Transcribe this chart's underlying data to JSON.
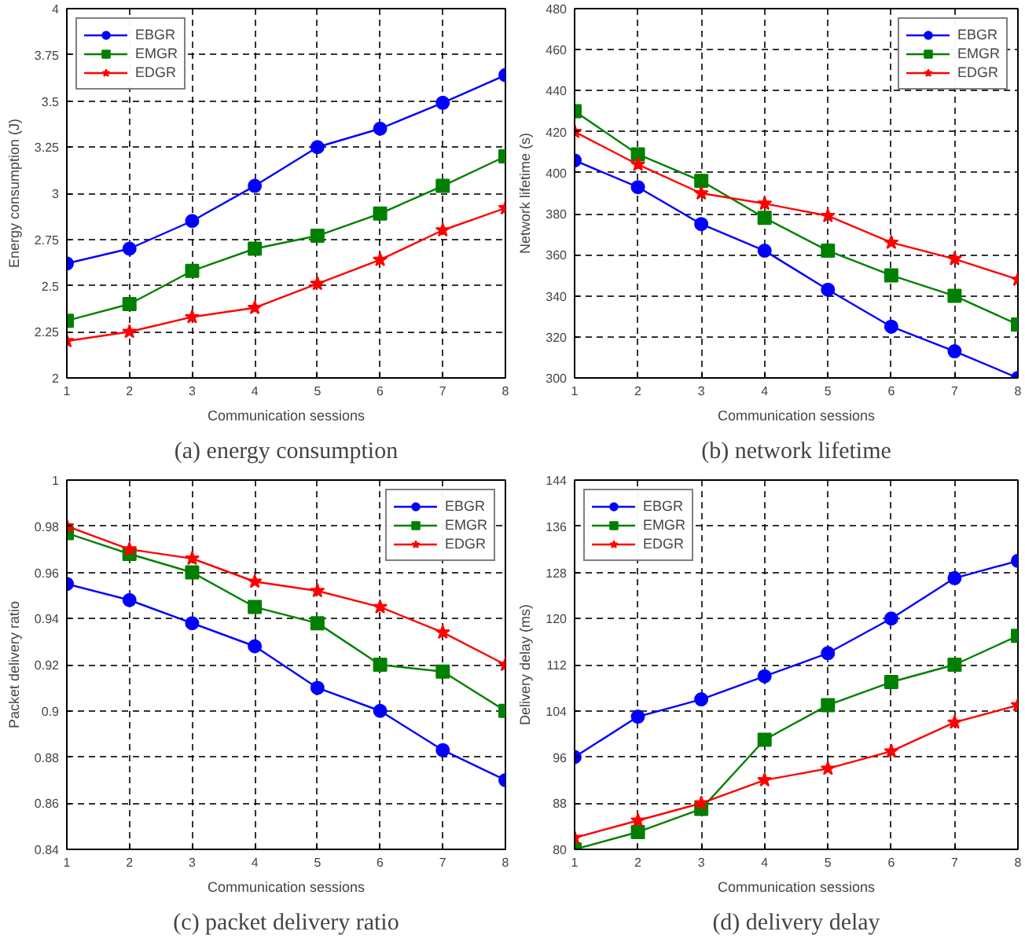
{
  "chart_data": [
    {
      "type": "line",
      "title": "(a) energy consumption",
      "xlabel": "Communication sessions",
      "ylabel": "Energy consumption (J)",
      "x": [
        1,
        2,
        3,
        4,
        5,
        6,
        7,
        8
      ],
      "xlim": [
        1,
        8
      ],
      "xticks": [
        1,
        2,
        3,
        4,
        5,
        6,
        7,
        8
      ],
      "ylim": [
        2,
        4
      ],
      "yticks": [
        2,
        2.25,
        2.5,
        2.75,
        3,
        3.25,
        3.5,
        3.75,
        4
      ],
      "grid": true,
      "legend": "top left",
      "series": [
        {
          "name": "EBGR",
          "color": "#0000ff",
          "marker": "circle",
          "values": [
            2.62,
            2.7,
            2.85,
            3.04,
            3.25,
            3.35,
            3.49,
            3.64
          ]
        },
        {
          "name": "EMGR",
          "color": "#008000",
          "marker": "square",
          "values": [
            2.31,
            2.4,
            2.58,
            2.7,
            2.77,
            2.89,
            3.04,
            3.2
          ]
        },
        {
          "name": "EDGR",
          "color": "#ff0000",
          "marker": "star",
          "values": [
            2.2,
            2.25,
            2.33,
            2.38,
            2.51,
            2.64,
            2.8,
            2.92
          ]
        }
      ]
    },
    {
      "type": "line",
      "title": "(b) network lifetime",
      "xlabel": "Communication sessions",
      "ylabel": "Network lifetime (s)",
      "x": [
        1,
        2,
        3,
        4,
        5,
        6,
        7,
        8
      ],
      "xlim": [
        1,
        8
      ],
      "xticks": [
        1,
        2,
        3,
        4,
        5,
        6,
        7,
        8
      ],
      "ylim": [
        300,
        480
      ],
      "yticks": [
        300,
        320,
        340,
        360,
        380,
        400,
        420,
        440,
        460,
        480
      ],
      "grid": true,
      "legend": "top right",
      "series": [
        {
          "name": "EBGR",
          "color": "#0000ff",
          "marker": "circle",
          "values": [
            406,
            393,
            375,
            362,
            343,
            325,
            313,
            300
          ]
        },
        {
          "name": "EMGR",
          "color": "#008000",
          "marker": "square",
          "values": [
            430,
            409,
            396,
            378,
            362,
            350,
            340,
            326
          ]
        },
        {
          "name": "EDGR",
          "color": "#ff0000",
          "marker": "star",
          "values": [
            420,
            404,
            390,
            385,
            379,
            366,
            358,
            348
          ]
        }
      ]
    },
    {
      "type": "line",
      "title": "(c) packet delivery ratio",
      "xlabel": "Communication sessions",
      "ylabel": "Packet delivery ratio",
      "x": [
        1,
        2,
        3,
        4,
        5,
        6,
        7,
        8
      ],
      "xlim": [
        1,
        8
      ],
      "xticks": [
        1,
        2,
        3,
        4,
        5,
        6,
        7,
        8
      ],
      "ylim": [
        0.84,
        1
      ],
      "yticks": [
        0.84,
        0.86,
        0.88,
        0.9,
        0.92,
        0.94,
        0.96,
        0.98,
        1
      ],
      "grid": true,
      "legend": "top right",
      "series": [
        {
          "name": "EBGR",
          "color": "#0000ff",
          "marker": "circle",
          "values": [
            0.955,
            0.948,
            0.938,
            0.928,
            0.91,
            0.9,
            0.883,
            0.87
          ]
        },
        {
          "name": "EMGR",
          "color": "#008000",
          "marker": "square",
          "values": [
            0.977,
            0.968,
            0.96,
            0.945,
            0.938,
            0.92,
            0.917,
            0.9
          ]
        },
        {
          "name": "EDGR",
          "color": "#ff0000",
          "marker": "star",
          "values": [
            0.98,
            0.97,
            0.966,
            0.956,
            0.952,
            0.945,
            0.934,
            0.92
          ]
        }
      ]
    },
    {
      "type": "line",
      "title": "(d) delivery delay",
      "xlabel": "Communication sessions",
      "ylabel": "Delivery delay (ms)",
      "x": [
        1,
        2,
        3,
        4,
        5,
        6,
        7,
        8
      ],
      "xlim": [
        1,
        8
      ],
      "xticks": [
        1,
        2,
        3,
        4,
        5,
        6,
        7,
        8
      ],
      "ylim": [
        80,
        144
      ],
      "yticks": [
        80,
        88,
        96,
        104,
        112,
        120,
        128,
        136,
        144
      ],
      "grid": true,
      "legend": "top left",
      "series": [
        {
          "name": "EBGR",
          "color": "#0000ff",
          "marker": "circle",
          "values": [
            96,
            103,
            106,
            110,
            114,
            120,
            127,
            130
          ]
        },
        {
          "name": "EMGR",
          "color": "#008000",
          "marker": "square",
          "values": [
            80,
            83,
            87,
            99,
            105,
            109,
            112,
            117
          ]
        },
        {
          "name": "EDGR",
          "color": "#ff0000",
          "marker": "star",
          "values": [
            82,
            85,
            88,
            92,
            94,
            97,
            102,
            105
          ]
        }
      ]
    }
  ]
}
